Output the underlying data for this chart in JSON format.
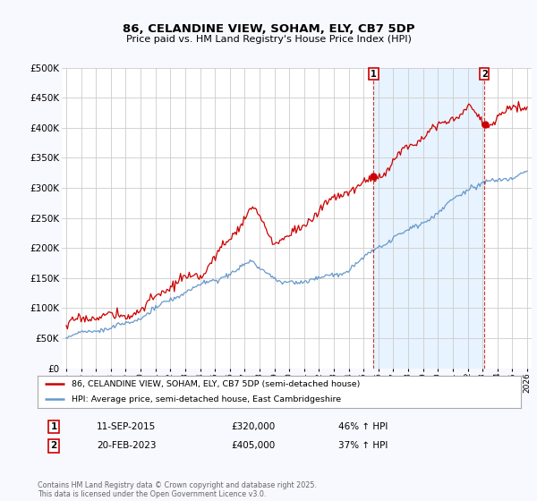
{
  "title": "86, CELANDINE VIEW, SOHAM, ELY, CB7 5DP",
  "subtitle": "Price paid vs. HM Land Registry's House Price Index (HPI)",
  "ylabel_ticks": [
    "£0",
    "£50K",
    "£100K",
    "£150K",
    "£200K",
    "£250K",
    "£300K",
    "£350K",
    "£400K",
    "£450K",
    "£500K"
  ],
  "ytick_values": [
    0,
    50000,
    100000,
    150000,
    200000,
    250000,
    300000,
    350000,
    400000,
    450000,
    500000
  ],
  "ylim": [
    0,
    500000
  ],
  "xlim_start": 1994.7,
  "xlim_end": 2026.3,
  "price_color": "#cc0000",
  "hpi_color": "#6699cc",
  "shade_color": "#ddeeff",
  "purchase1_year": 2015,
  "purchase1_month": 9,
  "purchase1_date": 2015.67,
  "purchase1_price": 320000,
  "purchase2_year": 2023,
  "purchase2_month": 2,
  "purchase2_date": 2023.12,
  "purchase2_price": 405000,
  "legend_line1": "86, CELANDINE VIEW, SOHAM, ELY, CB7 5DP (semi-detached house)",
  "legend_line2": "HPI: Average price, semi-detached house, East Cambridgeshire",
  "annotation1_label": "1",
  "annotation1_text": "11-SEP-2015",
  "annotation1_price": "£320,000",
  "annotation1_hpi": "46% ↑ HPI",
  "annotation2_label": "2",
  "annotation2_text": "20-FEB-2023",
  "annotation2_price": "£405,000",
  "annotation2_hpi": "37% ↑ HPI",
  "footer": "Contains HM Land Registry data © Crown copyright and database right 2025.\nThis data is licensed under the Open Government Licence v3.0.",
  "bg_color": "#f8f8ff",
  "plot_bg_color": "#ffffff",
  "grid_color": "#cccccc"
}
